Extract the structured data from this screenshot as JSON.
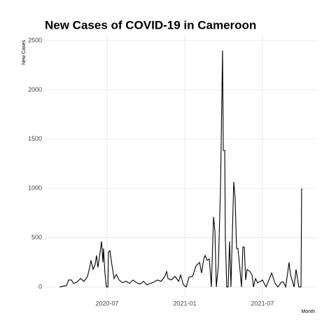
{
  "chart_data": {
    "type": "line",
    "title": "New Cases of COVID-19 in Cameroon",
    "y_label": "New Cases",
    "x_label": "Month",
    "x": [
      2020.194,
      2020.239,
      2020.252,
      2020.27,
      2020.284,
      2020.306,
      2020.329,
      2020.351,
      2020.374,
      2020.387,
      2020.396,
      2020.41,
      2020.423,
      2020.432,
      2020.441,
      2020.455,
      2020.464,
      2020.473,
      2020.477,
      2020.486,
      2020.495,
      2020.505,
      2020.509,
      2020.518,
      2020.532,
      2020.545,
      2020.559,
      2020.577,
      2020.599,
      2020.622,
      2020.644,
      2020.667,
      2020.689,
      2020.712,
      2020.734,
      2020.757,
      2020.779,
      2020.802,
      2020.824,
      2020.847,
      2020.869,
      2020.883,
      2020.892,
      2020.914,
      2020.937,
      2020.96,
      2020.973,
      2020.991,
      2021.009,
      2021.027,
      2021.05,
      2021.072,
      2021.095,
      2021.108,
      2021.122,
      2021.131,
      2021.144,
      2021.158,
      2021.171,
      2021.185,
      2021.194,
      2021.203,
      2021.216,
      2021.23,
      2021.243,
      2021.248,
      2021.257,
      2021.261,
      2021.27,
      2021.279,
      2021.288,
      2021.297,
      2021.306,
      2021.315,
      2021.324,
      2021.333,
      2021.342,
      2021.351,
      2021.365,
      2021.374,
      2021.383,
      2021.392,
      2021.401,
      2021.419,
      2021.433,
      2021.442,
      2021.455,
      2021.469,
      2021.487,
      2021.5,
      2021.523,
      2021.545,
      2021.559,
      2021.568,
      2021.581,
      2021.599,
      2021.622,
      2021.635,
      2021.649,
      2021.662,
      2021.671,
      2021.68,
      2021.703,
      2021.716,
      2021.734,
      2021.748,
      2021.752,
      2021.757
    ],
    "series": [
      {
        "name": "New Cases",
        "color": "#000000",
        "values": [
          0,
          14,
          71,
          71,
          36,
          50,
          85,
          57,
          107,
          192,
          270,
          178,
          227,
          320,
          199,
          355,
          462,
          249,
          391,
          142,
          0,
          0,
          355,
          369,
          213,
          85,
          128,
          71,
          43,
          57,
          36,
          71,
          43,
          28,
          57,
          21,
          36,
          50,
          71,
          57,
          99,
          156,
          85,
          71,
          107,
          57,
          121,
          21,
          0,
          99,
          107,
          213,
          249,
          142,
          284,
          320,
          270,
          284,
          0,
          710,
          568,
          0,
          213,
          1009,
          2400,
          1385,
          1385,
          497,
          0,
          0,
          462,
          0,
          533,
          1065,
          902,
          391,
          391,
          249,
          0,
          405,
          405,
          71,
          178,
          156,
          121,
          0,
          85,
          43,
          57,
          71,
          0,
          85,
          142,
          99,
          36,
          0,
          50,
          50,
          0,
          142,
          249,
          128,
          0,
          178,
          0,
          0,
          994,
          994
        ]
      }
    ],
    "xlim": [
      2020.099,
      2021.838
    ],
    "xticks": [
      {
        "value": 2020.5,
        "label": "2020-07"
      },
      {
        "value": 2021.0,
        "label": "2021-01"
      },
      {
        "value": 2021.5,
        "label": "2021-07"
      }
    ],
    "ylim": [
      -107,
      2571
    ],
    "yticks": [
      0,
      500,
      1000,
      1500,
      2000,
      2500
    ],
    "grid": true
  }
}
